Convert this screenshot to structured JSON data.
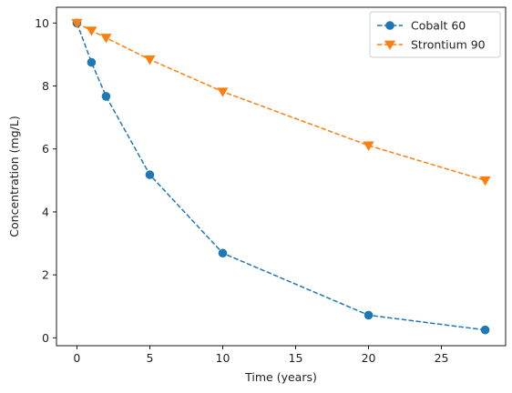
{
  "chart_data": {
    "type": "line",
    "title": "",
    "xlabel": "Time (years)",
    "ylabel": "Concentration (mg/L)",
    "xlim": [
      -1.4,
      29.4
    ],
    "ylim": [
      -0.25,
      10.5
    ],
    "xticks": [
      0,
      5,
      10,
      15,
      20,
      25
    ],
    "yticks": [
      0,
      2,
      4,
      6,
      8,
      10
    ],
    "grid": false,
    "legend_position": "top-right",
    "series": [
      {
        "name": "Cobalt 60",
        "color": "#1f77b4",
        "marker": "circle",
        "line_style": "dashed",
        "x": [
          0,
          1,
          2,
          5,
          10,
          20,
          28
        ],
        "y": [
          10.0,
          8.75,
          7.67,
          5.18,
          2.69,
          0.72,
          0.25
        ]
      },
      {
        "name": "Strontium 90",
        "color": "#ff7f0e",
        "marker": "triangle-down",
        "line_style": "dashed",
        "x": [
          0,
          1,
          2,
          5,
          10,
          20,
          28
        ],
        "y": [
          10.0,
          9.76,
          9.53,
          8.84,
          7.82,
          6.11,
          5.0
        ]
      }
    ]
  }
}
